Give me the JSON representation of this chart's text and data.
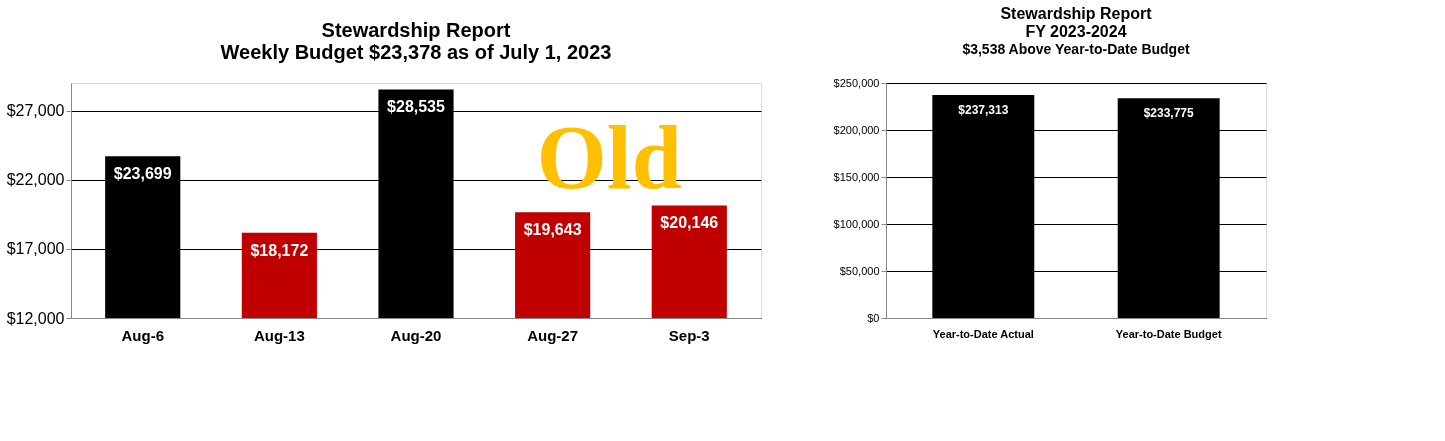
{
  "chart_data": [
    {
      "type": "bar",
      "title": "Stewardship Report\nWeekly Budget $23,378 as of July 1, 2023",
      "categories": [
        "Aug-6",
        "Aug-13",
        "Aug-20",
        "Aug-27",
        "Sep-3"
      ],
      "values": [
        23699,
        18172,
        28535,
        19643,
        20146
      ],
      "colors": [
        "#000000",
        "#c00000",
        "#000000",
        "#c00000",
        "#c00000"
      ],
      "value_labels": [
        "$23,699",
        "$18,172",
        "$28,535",
        "$19,643",
        "$20,146"
      ],
      "ylim": [
        12000,
        29000
      ],
      "yticks": [
        {
          "value": 12000,
          "label": "$12,000"
        },
        {
          "value": 17000,
          "label": "$17,000"
        },
        {
          "value": 22000,
          "label": "$22,000"
        },
        {
          "value": 27000,
          "label": "$27,000"
        }
      ],
      "grid": "y",
      "annotations": [
        "Old"
      ]
    },
    {
      "type": "bar",
      "title": "Stewardship Report\nFY 2023-2024",
      "subtitle": "$3,538 Above Year-to-Date Budget",
      "categories": [
        "Year-to-Date Actual",
        "Year-to-Date Budget"
      ],
      "values": [
        237313,
        233775
      ],
      "colors": [
        "#000000",
        "#000000"
      ],
      "value_labels": [
        "$237,313",
        "$233,775"
      ],
      "ylim": [
        0,
        250000
      ],
      "yticks": [
        {
          "value": 0,
          "label": "$0"
        },
        {
          "value": 50000,
          "label": "$50,000"
        },
        {
          "value": 100000,
          "label": "$100,000"
        },
        {
          "value": 150000,
          "label": "$150,000"
        },
        {
          "value": 200000,
          "label": "$200,000"
        },
        {
          "value": 250000,
          "label": "$250,000"
        }
      ],
      "grid": "y"
    }
  ]
}
